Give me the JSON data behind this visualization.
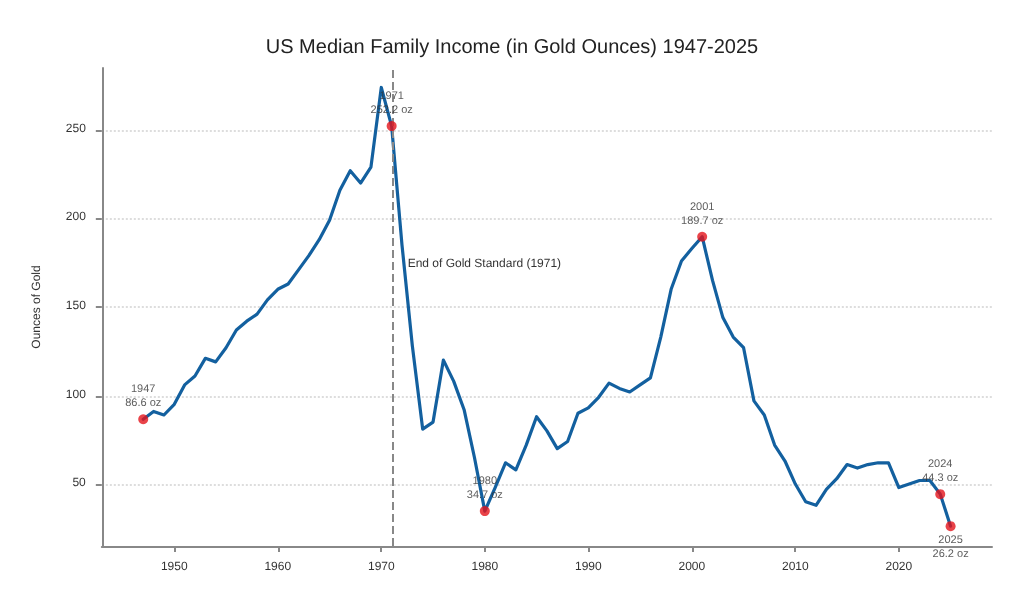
{
  "chart_data": {
    "type": "line",
    "title": "US Median Family Income (in Gold Ounces) 1947-2025",
    "ylabel": "Ounces of Gold",
    "x": [
      1947,
      1948,
      1949,
      1950,
      1951,
      1952,
      1953,
      1954,
      1955,
      1956,
      1957,
      1958,
      1959,
      1960,
      1961,
      1962,
      1963,
      1964,
      1965,
      1966,
      1967,
      1968,
      1969,
      1970,
      1971,
      1972,
      1973,
      1974,
      1975,
      1976,
      1977,
      1978,
      1979,
      1980,
      1981,
      1982,
      1983,
      1984,
      1985,
      1986,
      1987,
      1988,
      1989,
      1990,
      1991,
      1992,
      1993,
      1994,
      1995,
      1996,
      1997,
      1998,
      1999,
      2000,
      2001,
      2002,
      2003,
      2004,
      2005,
      2006,
      2007,
      2008,
      2009,
      2010,
      2011,
      2012,
      2013,
      2014,
      2015,
      2016,
      2017,
      2018,
      2019,
      2020,
      2021,
      2022,
      2023,
      2024,
      2025
    ],
    "series": [
      {
        "color": "#13609f",
        "values": [
          86.6,
          91,
          89,
          95,
          106,
          111,
          121,
          119,
          127,
          137,
          142,
          146,
          154,
          160,
          163,
          171,
          179,
          188,
          199,
          216,
          227,
          220,
          229,
          274,
          252.2,
          185,
          128,
          81,
          85,
          120,
          108,
          92,
          65,
          34.7,
          48,
          62,
          58,
          72,
          88,
          80,
          70,
          74,
          90,
          93,
          99,
          107,
          104,
          102,
          106,
          110,
          133,
          160,
          176,
          183,
          189.7,
          165,
          144,
          133,
          127,
          97,
          89,
          72,
          63,
          50,
          40,
          38,
          47,
          53,
          61,
          59,
          61,
          62,
          62,
          48,
          50,
          52,
          52,
          44.3,
          26.2
        ]
      },
      {
        "type": "scatter",
        "marker": "circle",
        "color": "#e3141b",
        "x": [
          1947,
          1971,
          1980,
          2001,
          2024,
          2025
        ],
        "values": [
          86.6,
          252.2,
          34.7,
          189.7,
          44.3,
          26.2
        ]
      }
    ],
    "annotations": [
      {
        "text": "1947\n86.6 oz",
        "x": 1947,
        "y": 86.6
      },
      {
        "text": "1971\n252.2 oz",
        "x": 1971,
        "y": 252.2
      },
      {
        "text": "1980\n34.7 oz",
        "x": 1980,
        "y": 34.7
      },
      {
        "text": "2001\n189.7 oz",
        "x": 2001,
        "y": 189.7
      },
      {
        "text": "2024\n44.3 oz",
        "x": 2024,
        "y": 44.3
      },
      {
        "text": "2025\n26.2 oz",
        "x": 2025,
        "y": 26.2
      }
    ],
    "ref_lines": [
      {
        "axis": "x",
        "value": 1971,
        "label": "End of Gold Standard (1971)",
        "color": "#888888",
        "line_style": "dashed"
      }
    ],
    "xlim": [
      1943,
      2029
    ],
    "xticks": [
      1950,
      1960,
      1970,
      1980,
      1990,
      2000,
      2010,
      2020
    ],
    "ylim": [
      15,
      285
    ],
    "yticks": [
      50,
      100,
      150,
      200,
      250
    ],
    "grid": "y",
    "marker": "none",
    "line_style": "solid"
  }
}
